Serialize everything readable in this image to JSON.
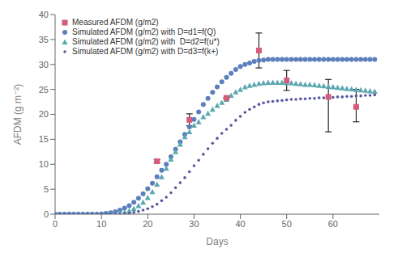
{
  "chart_data": {
    "type": "scatter",
    "title": "",
    "xlabel": "Days",
    "ylabel": "AFDM (g m⁻²)",
    "xlim": [
      0,
      70
    ],
    "ylim": [
      0,
      40
    ],
    "xticks": [
      0,
      10,
      20,
      30,
      40,
      50,
      60
    ],
    "yticks": [
      0,
      5,
      10,
      15,
      20,
      25,
      30,
      35,
      40
    ],
    "grid": false,
    "legend": "upper left",
    "series": [
      {
        "name": "Measured AFDM (g/m2)",
        "color": "#d45b7a",
        "marker": "square",
        "x": [
          22,
          29,
          37,
          44,
          50,
          59,
          65
        ],
        "values": [
          10.6,
          18.9,
          23.3,
          32.8,
          26.8,
          23.5,
          21.5
        ],
        "yerr_low": [
          0.3,
          1.2,
          0.0,
          3.5,
          2.0,
          7.0,
          3.0
        ],
        "yerr_high": [
          0.3,
          1.2,
          0.0,
          3.5,
          2.0,
          3.5,
          3.5
        ]
      },
      {
        "name": "Simulated AFDM (g/m2) with D=d1=f(Q)",
        "color": "#5b7fbd",
        "marker": "circle",
        "x": [
          0,
          1,
          2,
          3,
          4,
          5,
          6,
          7,
          8,
          9,
          10,
          11,
          12,
          13,
          14,
          15,
          16,
          17,
          18,
          19,
          20,
          21,
          22,
          23,
          24,
          25,
          26,
          27,
          28,
          29,
          30,
          31,
          32,
          33,
          34,
          35,
          36,
          37,
          38,
          39,
          40,
          41,
          42,
          43,
          44,
          45,
          46,
          47,
          48,
          49,
          50,
          51,
          52,
          53,
          54,
          55,
          56,
          57,
          58,
          59,
          60,
          61,
          62,
          63,
          64,
          65,
          66,
          67,
          68,
          69
        ],
        "values": [
          0.0,
          0.0,
          0.0,
          0.0,
          0.0,
          0.0,
          0.0,
          0.0,
          0.0,
          0.0,
          0.05,
          0.15,
          0.3,
          0.5,
          0.8,
          1.2,
          1.7,
          2.4,
          3.2,
          4.1,
          5.1,
          6.2,
          7.5,
          8.8,
          10.0,
          11.5,
          13.0,
          14.5,
          16.0,
          17.5,
          19.0,
          20.5,
          22.0,
          23.2,
          24.4,
          25.5,
          26.5,
          27.4,
          28.2,
          29.0,
          29.6,
          30.0,
          30.3,
          30.6,
          30.8,
          30.9,
          31.0,
          31.0,
          31.0,
          31.0,
          31.0,
          31.0,
          31.0,
          31.0,
          31.0,
          31.0,
          31.0,
          31.0,
          31.0,
          31.0,
          31.0,
          31.0,
          31.0,
          31.0,
          31.0,
          31.0,
          31.0,
          31.0,
          31.0,
          31.0
        ]
      },
      {
        "name": "Simulated AFDM (g/m2) with  D=d2=f(u*)",
        "color": "#5ca8b0",
        "marker": "triangle",
        "x": [
          0,
          1,
          2,
          3,
          4,
          5,
          6,
          7,
          8,
          9,
          10,
          11,
          12,
          13,
          14,
          15,
          16,
          17,
          18,
          19,
          20,
          21,
          22,
          23,
          24,
          25,
          26,
          27,
          28,
          29,
          30,
          31,
          32,
          33,
          34,
          35,
          36,
          37,
          38,
          39,
          40,
          41,
          42,
          43,
          44,
          45,
          46,
          47,
          48,
          49,
          50,
          51,
          52,
          53,
          54,
          55,
          56,
          57,
          58,
          59,
          60,
          61,
          62,
          63,
          64,
          65,
          66,
          67,
          68,
          69
        ],
        "values": [
          0.0,
          0.0,
          0.0,
          0.0,
          0.0,
          0.0,
          0.0,
          0.0,
          0.0,
          0.0,
          0.0,
          0.0,
          0.05,
          0.1,
          0.2,
          0.4,
          0.7,
          1.1,
          1.7,
          2.4,
          3.3,
          4.5,
          6.0,
          7.5,
          9.2,
          11.0,
          12.5,
          14.0,
          15.5,
          16.5,
          17.8,
          18.5,
          19.5,
          20.2,
          21.0,
          21.8,
          22.4,
          23.0,
          23.8,
          24.5,
          25.0,
          25.5,
          25.8,
          26.0,
          26.2,
          26.3,
          26.4,
          26.4,
          26.4,
          26.4,
          26.3,
          26.3,
          26.2,
          26.1,
          26.0,
          26.0,
          25.9,
          25.8,
          25.7,
          25.6,
          25.5,
          25.4,
          25.3,
          25.2,
          25.1,
          25.0,
          24.9,
          24.8,
          24.7,
          24.6
        ]
      },
      {
        "name": "Simulated AFDM (g/m2) with D=d3=f(k+)",
        "color": "#5858a0",
        "marker": "point",
        "x": [
          0,
          1,
          2,
          3,
          4,
          5,
          6,
          7,
          8,
          9,
          10,
          11,
          12,
          13,
          14,
          15,
          16,
          17,
          18,
          19,
          20,
          21,
          22,
          23,
          24,
          25,
          26,
          27,
          28,
          29,
          30,
          31,
          32,
          33,
          34,
          35,
          36,
          37,
          38,
          39,
          40,
          41,
          42,
          43,
          44,
          45,
          46,
          47,
          48,
          49,
          50,
          51,
          52,
          53,
          54,
          55,
          56,
          57,
          58,
          59,
          60,
          61,
          62,
          63,
          64,
          65,
          66,
          67,
          68,
          69
        ],
        "values": [
          0.0,
          0.0,
          0.0,
          0.0,
          0.0,
          0.0,
          0.0,
          0.0,
          0.0,
          0.0,
          0.0,
          0.0,
          0.0,
          0.02,
          0.05,
          0.1,
          0.2,
          0.35,
          0.55,
          0.8,
          1.1,
          1.5,
          2.0,
          2.7,
          3.4,
          4.3,
          5.3,
          6.3,
          7.3,
          8.5,
          9.7,
          10.8,
          12.0,
          13.1,
          14.2,
          15.2,
          16.2,
          17.0,
          17.8,
          18.8,
          19.6,
          20.4,
          21.0,
          21.5,
          22.0,
          22.3,
          22.5,
          22.6,
          22.7,
          22.8,
          22.9,
          23.0,
          23.0,
          23.1,
          23.1,
          23.2,
          23.2,
          23.3,
          23.3,
          23.4,
          23.4,
          23.5,
          23.5,
          23.6,
          23.6,
          23.7,
          23.7,
          23.8,
          23.8,
          23.9
        ]
      }
    ]
  }
}
